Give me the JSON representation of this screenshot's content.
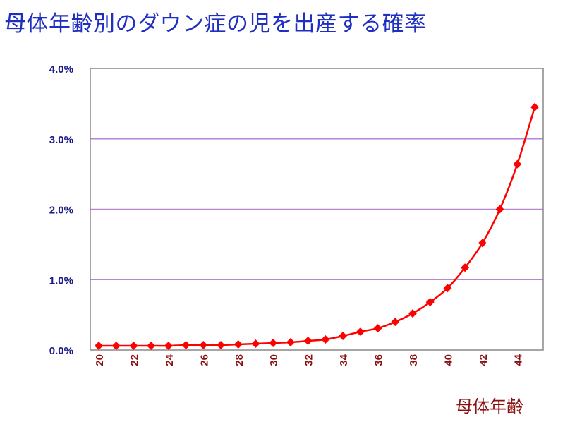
{
  "chart_data": {
    "type": "line",
    "title": "母体年齢別のダウン症の児を出産する確率",
    "xlabel": "母体年齢",
    "ylabel": "",
    "x": [
      20,
      21,
      22,
      23,
      24,
      25,
      26,
      27,
      28,
      29,
      30,
      31,
      32,
      33,
      34,
      35,
      36,
      37,
      38,
      39,
      40,
      41,
      42,
      43,
      44,
      45
    ],
    "x_tick_labels": [
      "20",
      "22",
      "24",
      "26",
      "28",
      "30",
      "32",
      "34",
      "36",
      "38",
      "40",
      "42",
      "44"
    ],
    "y_tick_labels": [
      "0.0%",
      "1.0%",
      "2.0%",
      "3.0%",
      "4.0%"
    ],
    "ylim": [
      0,
      4.0
    ],
    "y_unit": "%",
    "grid": "horizontal",
    "series": [
      {
        "values": [
          0.06,
          0.06,
          0.06,
          0.06,
          0.06,
          0.07,
          0.07,
          0.07,
          0.08,
          0.09,
          0.1,
          0.11,
          0.13,
          0.15,
          0.2,
          0.26,
          0.31,
          0.4,
          0.52,
          0.68,
          0.88,
          1.17,
          1.52,
          2.0,
          2.64,
          3.45
        ],
        "color": "#ff0000",
        "marker": "diamond"
      }
    ]
  },
  "colors": {
    "title": "#1f2fbf",
    "y_ticks": "#1a1a8a",
    "x_ticks": "#8b1010",
    "gridlines": "#b784d6",
    "frame": "#888888"
  }
}
